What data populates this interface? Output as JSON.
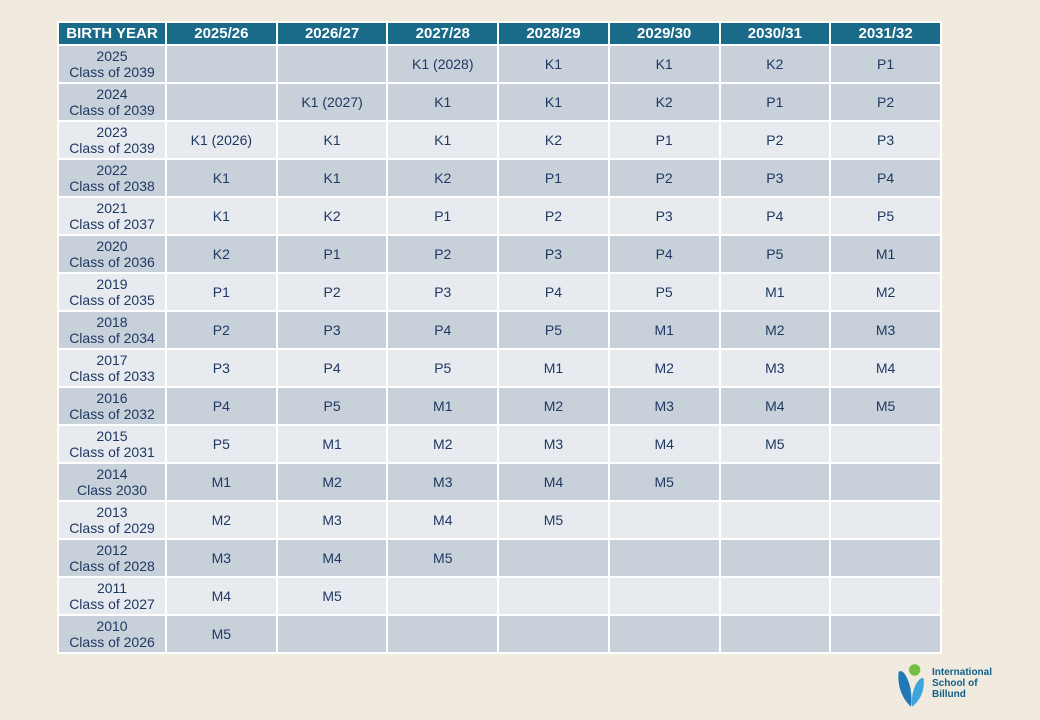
{
  "page": {
    "background": "#F0EBDE"
  },
  "table": {
    "header": {
      "birth_year_label": "BIRTH YEAR",
      "year_columns": [
        "2025/26",
        "2026/27",
        "2027/28",
        "2028/29",
        "2029/30",
        "2030/31",
        "2031/32"
      ]
    },
    "colors": {
      "header_bg": "#1A6A89",
      "header_text": "#FFFFFF",
      "row_dark": "#C8D0DA",
      "row_light": "#E7EAEE",
      "cell_text": "#1F3864",
      "grid": "#FFFFFF"
    },
    "rows": [
      {
        "birth_year": "2025",
        "class_label": "Class of 2039",
        "shaded": true,
        "cells": [
          "",
          "",
          "K1 (2028)",
          "K1",
          "K1",
          "K2",
          "P1"
        ]
      },
      {
        "birth_year": "2024",
        "class_label": "Class of 2039",
        "shaded": true,
        "cells": [
          "",
          "K1 (2027)",
          "K1",
          "K1",
          "K2",
          "P1",
          "P2"
        ]
      },
      {
        "birth_year": "2023",
        "class_label": "Class of 2039",
        "shaded": false,
        "cells": [
          "K1 (2026)",
          "K1",
          "K1",
          "K2",
          "P1",
          "P2",
          "P3"
        ]
      },
      {
        "birth_year": "2022",
        "class_label": "Class of 2038",
        "shaded": true,
        "cells": [
          "K1",
          "K1",
          "K2",
          "P1",
          "P2",
          "P3",
          "P4"
        ]
      },
      {
        "birth_year": "2021",
        "class_label": "Class of 2037",
        "shaded": false,
        "cells": [
          "K1",
          "K2",
          "P1",
          "P2",
          "P3",
          "P4",
          "P5"
        ]
      },
      {
        "birth_year": "2020",
        "class_label": "Class of 2036",
        "shaded": true,
        "cells": [
          "K2",
          "P1",
          "P2",
          "P3",
          "P4",
          "P5",
          "M1"
        ]
      },
      {
        "birth_year": "2019",
        "class_label": "Class of 2035",
        "shaded": false,
        "cells": [
          "P1",
          "P2",
          "P3",
          "P4",
          "P5",
          "M1",
          "M2"
        ]
      },
      {
        "birth_year": "2018",
        "class_label": "Class of 2034",
        "shaded": true,
        "cells": [
          "P2",
          "P3",
          "P4",
          "P5",
          "M1",
          "M2",
          "M3"
        ]
      },
      {
        "birth_year": "2017",
        "class_label": "Class of 2033",
        "shaded": false,
        "cells": [
          "P3",
          "P4",
          "P5",
          "M1",
          "M2",
          "M3",
          "M4"
        ]
      },
      {
        "birth_year": "2016",
        "class_label": "Class of 2032",
        "shaded": true,
        "cells": [
          "P4",
          "P5",
          "M1",
          "M2",
          "M3",
          "M4",
          "M5"
        ]
      },
      {
        "birth_year": "2015",
        "class_label": "Class of 2031",
        "shaded": false,
        "cells": [
          "P5",
          "M1",
          "M2",
          "M3",
          "M4",
          "M5",
          ""
        ]
      },
      {
        "birth_year": "2014",
        "class_label": "Class 2030",
        "shaded": true,
        "cells": [
          "M1",
          "M2",
          "M3",
          "M4",
          "M5",
          "",
          ""
        ]
      },
      {
        "birth_year": "2013",
        "class_label": "Class of 2029",
        "shaded": false,
        "cells": [
          "M2",
          "M3",
          "M4",
          "M5",
          "",
          "",
          ""
        ]
      },
      {
        "birth_year": "2012",
        "class_label": "Class of 2028",
        "shaded": true,
        "cells": [
          "M3",
          "M4",
          "M5",
          "",
          "",
          "",
          ""
        ]
      },
      {
        "birth_year": "2011",
        "class_label": "Class of 2027",
        "shaded": false,
        "cells": [
          "M4",
          "M5",
          "",
          "",
          "",
          "",
          ""
        ]
      },
      {
        "birth_year": "2010",
        "class_label": "Class of 2026",
        "shaded": true,
        "cells": [
          "M5",
          "",
          "",
          "",
          "",
          "",
          ""
        ]
      }
    ]
  },
  "logo": {
    "name": "International School of Billund",
    "lines": [
      "International",
      "School of",
      "Billund"
    ],
    "colors": {
      "text": "#126089",
      "petal_left": "#2178B6",
      "petal_right": "#3DA4DC",
      "dot": "#74BE44"
    }
  }
}
